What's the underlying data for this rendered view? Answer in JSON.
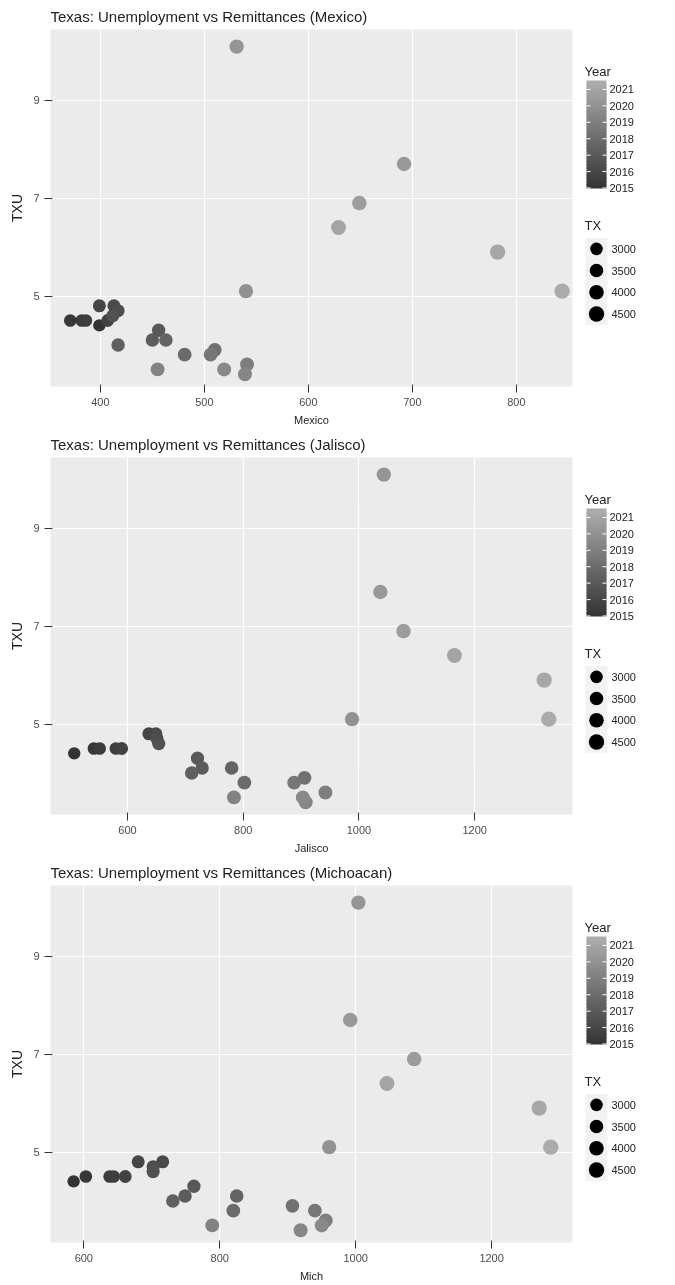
{
  "chart_data": [
    {
      "type": "bubble",
      "title": "Texas: Unemployment vs Remittances (Mexico)",
      "xlabel": "Mexico",
      "ylabel": "TXU",
      "clabel": "Year",
      "legend_title": "TX",
      "grid": true,
      "x": [
        399,
        371,
        382,
        386,
        407,
        399,
        413,
        417,
        412,
        456,
        450,
        417,
        463,
        481,
        510,
        506,
        541,
        455,
        539,
        519,
        540,
        531,
        692,
        649,
        629,
        782,
        844
      ],
      "values": [
        4.4,
        4.5,
        4.5,
        4.5,
        4.5,
        4.8,
        4.8,
        4.7,
        4.6,
        4.3,
        4.1,
        4.0,
        4.1,
        3.8,
        3.9,
        3.8,
        3.6,
        3.5,
        3.4,
        3.5,
        5.1,
        10.1,
        7.7,
        6.9,
        6.4,
        5.9,
        5.1
      ],
      "sizes": [
        2900,
        3000,
        3000,
        3050,
        3100,
        3200,
        3250,
        3250,
        3300,
        3350,
        3400,
        3450,
        3500,
        3600,
        3550,
        3600,
        3650,
        3650,
        3700,
        3700,
        3800,
        3900,
        3950,
        4000,
        4200,
        4400,
        4500
      ],
      "cvalues": [
        2015.0,
        2015.2,
        2015.4,
        2015.6,
        2015.8,
        2016.0,
        2016.2,
        2016.4,
        2016.6,
        2017.0,
        2017.2,
        2017.4,
        2017.6,
        2018.0,
        2018.3,
        2018.6,
        2019.0,
        2019.2,
        2019.4,
        2019.6,
        2020.0,
        2020.2,
        2020.4,
        2020.6,
        2021.0,
        2021.2,
        2021.4
      ],
      "size_legend": [
        3000,
        3500,
        4000,
        4500
      ],
      "clim": [
        2015,
        2021.5
      ],
      "cticks": [
        2015,
        2016,
        2017,
        2018,
        2019,
        2020,
        2021
      ],
      "xlim": [
        352,
        854
      ],
      "ylim": [
        3.15,
        10.45
      ],
      "xticks": [
        400,
        500,
        600,
        700,
        800
      ],
      "yticks": [
        5,
        7,
        9
      ]
    },
    {
      "type": "bubble",
      "title": "Texas: Unemployment vs Remittances (Jalisco)",
      "xlabel": "Jalisco",
      "ylabel": "TXU",
      "clabel": "Year",
      "legend_title": "TX",
      "grid": true,
      "x": [
        508,
        542,
        552,
        580,
        590,
        637,
        649,
        651,
        654,
        721,
        729,
        711,
        780,
        802,
        906,
        888,
        942,
        784,
        908,
        903,
        988,
        1043,
        1037,
        1077,
        1165,
        1320,
        1328
      ],
      "values": [
        4.4,
        4.5,
        4.5,
        4.5,
        4.5,
        4.8,
        4.8,
        4.7,
        4.6,
        4.3,
        4.1,
        4.0,
        4.1,
        3.8,
        3.9,
        3.8,
        3.6,
        3.5,
        3.4,
        3.5,
        5.1,
        10.1,
        7.7,
        6.9,
        6.4,
        5.9,
        5.1
      ],
      "sizes": [
        2900,
        3000,
        3000,
        3050,
        3100,
        3200,
        3250,
        3250,
        3300,
        3350,
        3400,
        3450,
        3500,
        3600,
        3550,
        3600,
        3650,
        3650,
        3700,
        3700,
        3800,
        3900,
        3950,
        4000,
        4200,
        4400,
        4500
      ],
      "cvalues": [
        2015.0,
        2015.2,
        2015.4,
        2015.6,
        2015.8,
        2016.0,
        2016.2,
        2016.4,
        2016.6,
        2017.0,
        2017.2,
        2017.4,
        2017.6,
        2018.0,
        2018.3,
        2018.6,
        2019.0,
        2019.2,
        2019.4,
        2019.6,
        2020.0,
        2020.2,
        2020.4,
        2020.6,
        2021.0,
        2021.2,
        2021.4
      ],
      "size_legend": [
        3000,
        3500,
        4000,
        4500
      ],
      "clim": [
        2015,
        2021.5
      ],
      "cticks": [
        2015,
        2016,
        2017,
        2018,
        2019,
        2020,
        2021
      ],
      "xlim": [
        467,
        1369
      ],
      "ylim": [
        3.15,
        10.45
      ],
      "xticks": [
        600,
        800,
        1000,
        1200
      ],
      "yticks": [
        5,
        7,
        9
      ]
    },
    {
      "type": "bubble",
      "title": "Texas: Unemployment vs Remittances (Michoacan)",
      "xlabel": "Mich",
      "ylabel": "TXU",
      "clabel": "Year",
      "legend_title": "TX",
      "grid": true,
      "x": [
        585,
        603,
        638,
        644,
        661,
        680,
        716,
        702,
        702,
        762,
        749,
        731,
        825,
        820,
        907,
        940,
        956,
        789,
        919,
        950,
        961,
        1004,
        992,
        1086,
        1046,
        1270,
        1287
      ],
      "values": [
        4.4,
        4.5,
        4.5,
        4.5,
        4.5,
        4.8,
        4.8,
        4.7,
        4.6,
        4.3,
        4.1,
        4.0,
        4.1,
        3.8,
        3.9,
        3.8,
        3.6,
        3.5,
        3.4,
        3.5,
        5.1,
        10.1,
        7.7,
        6.9,
        6.4,
        5.9,
        5.1
      ],
      "sizes": [
        2900,
        3000,
        3000,
        3050,
        3100,
        3200,
        3250,
        3250,
        3300,
        3350,
        3400,
        3450,
        3500,
        3600,
        3550,
        3600,
        3650,
        3650,
        3700,
        3700,
        3800,
        3900,
        3950,
        4000,
        4200,
        4400,
        4500
      ],
      "cvalues": [
        2015.0,
        2015.2,
        2015.4,
        2015.6,
        2015.8,
        2016.0,
        2016.2,
        2016.4,
        2016.6,
        2017.0,
        2017.2,
        2017.4,
        2017.6,
        2018.0,
        2018.3,
        2018.6,
        2019.0,
        2019.2,
        2019.4,
        2019.6,
        2020.0,
        2020.2,
        2020.4,
        2020.6,
        2021.0,
        2021.2,
        2021.4
      ],
      "size_legend": [
        3000,
        3500,
        4000,
        4500
      ],
      "clim": [
        2015,
        2021.5
      ],
      "cticks": [
        2015,
        2016,
        2017,
        2018,
        2019,
        2020,
        2021
      ],
      "xlim": [
        551,
        1319
      ],
      "ylim": [
        3.15,
        10.45
      ],
      "xticks": [
        600,
        800,
        1000,
        1200
      ],
      "yticks": [
        5,
        7,
        9
      ]
    }
  ]
}
